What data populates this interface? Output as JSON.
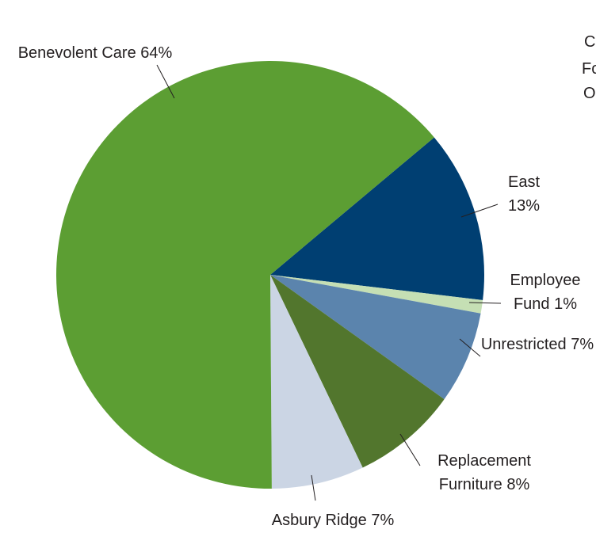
{
  "chart_data": {
    "type": "pie",
    "categories": [
      "East",
      "Employee Fund",
      "Unrestricted",
      "Replacement Furniture",
      "Asbury Ridge",
      "Benevolent Care"
    ],
    "values": [
      13,
      1,
      7,
      8,
      7,
      64
    ],
    "value_labels": [
      "13%",
      "1%",
      "7%",
      "8%",
      "7%",
      "64%"
    ],
    "colors": [
      "#003f72",
      "#c5dfb4",
      "#5b84ad",
      "#52762d",
      "#cbd5e4",
      "#5c9e33"
    ],
    "annotations": [
      "C",
      "Fo",
      "O"
    ]
  }
}
